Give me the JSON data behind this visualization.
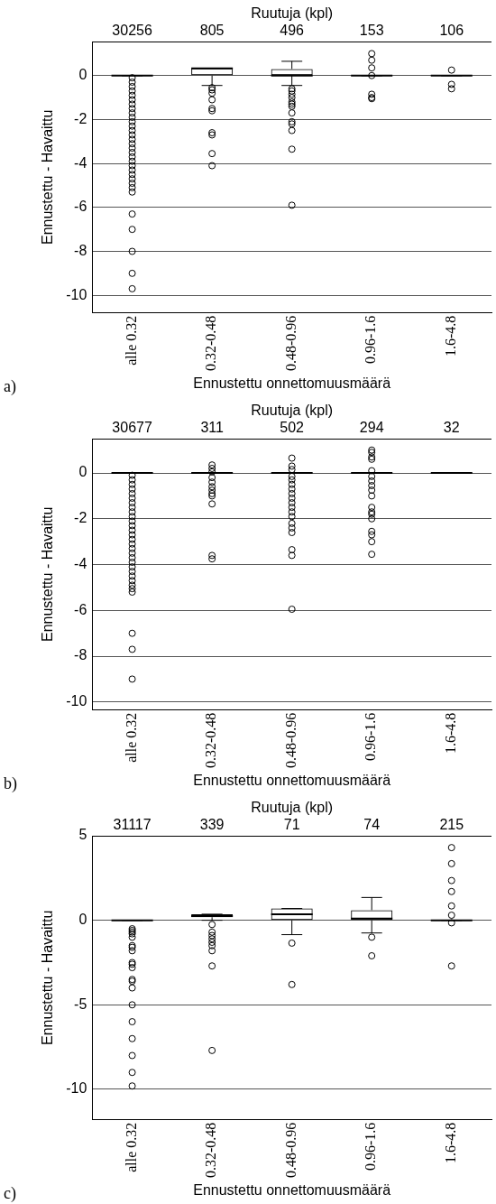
{
  "chart_data": [
    {
      "type": "box",
      "categories": [
        "alle 0.32",
        "0.32-0.48",
        "0.48-0.96",
        "0.96-1.6",
        "1.6-4.8"
      ],
      "xlabel": "Ennustettu onnettomuusmäärä",
      "ylabel": "Ennustettu - Havaittu",
      "x2label": "Ruutuja (kpl)",
      "ylim": [
        -10.8,
        1.55
      ],
      "yticks": [
        -10,
        -8,
        -6,
        -4,
        -2,
        0
      ],
      "grid": "y",
      "marker": "circle",
      "boxes": [
        {
          "low": 0,
          "q1": 0,
          "median": 0,
          "q3": 0,
          "high": 0,
          "outliers": [
            -0.1,
            -0.3,
            -0.5,
            -0.7,
            -0.9,
            -1.1,
            -1.3,
            -1.5,
            -1.7,
            -1.9,
            -2.1,
            -2.3,
            -2.5,
            -2.7,
            -2.9,
            -3.1,
            -3.3,
            -3.5,
            -3.7,
            -3.9,
            -4.1,
            -4.3,
            -4.5,
            -4.7,
            -4.9,
            -5.1,
            -5.3,
            -6.3,
            -7,
            -8,
            -9,
            -9.7
          ]
        },
        {
          "low": -0.45,
          "q1": 0,
          "median": 0.33,
          "q3": 0.33,
          "high": 0.33,
          "outliers": [
            -0.55,
            -0.65,
            -0.8,
            -1.1,
            -1.5,
            -1.6,
            -2.6,
            -2.7,
            -3.55,
            -4.1
          ]
        },
        {
          "low": -0.45,
          "q1": 0,
          "median": 0,
          "q3": 0.3,
          "high": 0.65,
          "outliers": [
            -0.6,
            -0.7,
            -0.85,
            -1,
            -1.2,
            -1.3,
            -1.4,
            -1.7,
            -2.1,
            -2.2,
            -2.5,
            -3.35,
            -5.9
          ]
        },
        {
          "low": 0,
          "q1": 0,
          "median": 0,
          "q3": 0,
          "high": 0,
          "outliers": [
            1,
            0.7,
            0.35,
            0,
            -0.85,
            -1,
            -1.05
          ]
        },
        {
          "low": 0,
          "q1": 0,
          "median": 0,
          "q3": 0,
          "high": 0,
          "outliers": [
            0.25,
            -0.4,
            -0.6
          ]
        }
      ],
      "annotations": [
        "a)",
        "30256",
        "805",
        "496",
        "153",
        "106"
      ]
    },
    {
      "type": "box",
      "categories": [
        "alle 0.32",
        "0.32-0.48",
        "0.48-0.96",
        "0.96-1.6",
        "1.6-4.8"
      ],
      "xlabel": "Ennustettu onnettomuusmäärä",
      "ylabel": "Ennustettu - Havaittu",
      "x2label": "Ruutuja (kpl)",
      "ylim": [
        -10.35,
        1.5
      ],
      "yticks": [
        -10,
        -8,
        -6,
        -4,
        -2,
        0
      ],
      "grid": "y",
      "marker": "circle",
      "boxes": [
        {
          "low": 0,
          "q1": 0,
          "median": 0,
          "q3": 0,
          "high": 0,
          "outliers": [
            -0.1,
            -0.3,
            -0.5,
            -0.7,
            -0.9,
            -1.1,
            -1.3,
            -1.5,
            -1.7,
            -1.9,
            -2.1,
            -2.3,
            -2.5,
            -2.7,
            -2.9,
            -3.1,
            -3.3,
            -3.5,
            -3.7,
            -3.9,
            -4.1,
            -4.3,
            -4.5,
            -4.7,
            -4.9,
            -5.05,
            -5.2,
            -7,
            -7.7,
            -9
          ]
        },
        {
          "low": 0,
          "q1": 0,
          "median": 0,
          "q3": 0,
          "high": 0,
          "outliers": [
            0.35,
            0.2,
            0.05,
            -0.2,
            -0.4,
            -0.6,
            -0.75,
            -0.9,
            -1,
            -1.35,
            -3.6,
            -3.75
          ]
        },
        {
          "low": 0,
          "q1": 0,
          "median": 0,
          "q3": 0,
          "high": 0,
          "outliers": [
            0.65,
            0.3,
            0.15,
            -0.15,
            -0.3,
            -0.5,
            -0.7,
            -0.9,
            -1.1,
            -1.3,
            -1.5,
            -1.7,
            -1.9,
            -2.2,
            -2.4,
            -2.6,
            -3.35,
            -3.6,
            -5.95
          ]
        },
        {
          "low": 0,
          "q1": 0,
          "median": 0,
          "q3": 0,
          "high": 0,
          "outliers": [
            1,
            0.9,
            0.7,
            0.6,
            0.1,
            -0.15,
            -0.35,
            -0.55,
            -0.75,
            -1,
            -1.5,
            -1.7,
            -1.8,
            -2,
            -2.55,
            -2.7,
            -3,
            -3.55
          ]
        },
        {
          "low": 0,
          "q1": 0,
          "median": 0,
          "q3": 0,
          "high": 0
        }
      ],
      "annotations": [
        "b)",
        "30677",
        "311",
        "502",
        "294",
        "32"
      ]
    },
    {
      "type": "box",
      "categories": [
        "alle 0.32",
        "0.32-0.48",
        "0.48-0.96",
        "0.96-1.6",
        "1.6-4.8"
      ],
      "xlabel": "Ennustettu onnettomuusmäärä",
      "ylabel": "Ennustettu - Havaittu",
      "x2label": "Ruutuja (kpl)",
      "ylim": [
        -11.8,
        5
      ],
      "yticks": [
        -10,
        -5,
        0,
        5
      ],
      "grid": "y",
      "marker": "circle",
      "boxes": [
        {
          "low": 0,
          "q1": 0,
          "median": 0,
          "q3": 0,
          "high": 0,
          "outliers": [
            -0.5,
            -0.6,
            -0.7,
            -0.8,
            -1,
            -1.5,
            -1.6,
            -1.8,
            -2.5,
            -2.6,
            -2.8,
            -3.5,
            -3.6,
            -4,
            -5,
            -6,
            -7,
            -8,
            -9,
            -9.8
          ]
        },
        {
          "low": 0,
          "q1": 0.18,
          "median": 0.25,
          "q3": 0.36,
          "high": 0.36,
          "outliers": [
            -0.25,
            -0.7,
            -0.9,
            -1.1,
            -1.3,
            -1.5,
            -1.8,
            -2.7,
            -7.7
          ]
        },
        {
          "low": -0.85,
          "q1": 0,
          "median": 0.35,
          "q3": 0.7,
          "high": 0.7,
          "outliers": [
            -1.35,
            -3.8
          ]
        },
        {
          "low": -0.75,
          "q1": 0,
          "median": 0.1,
          "q3": 0.6,
          "high": 1.35,
          "outliers": [
            -1,
            -2.1
          ]
        },
        {
          "low": 0,
          "q1": 0,
          "median": 0,
          "q3": 0,
          "high": 0,
          "outliers": [
            4.3,
            3.35,
            2.35,
            1.7,
            0.85,
            0.3,
            -0.15,
            -2.7
          ]
        }
      ],
      "annotations": [
        "c)",
        "31117",
        "339",
        "71",
        "74",
        "215"
      ]
    }
  ]
}
